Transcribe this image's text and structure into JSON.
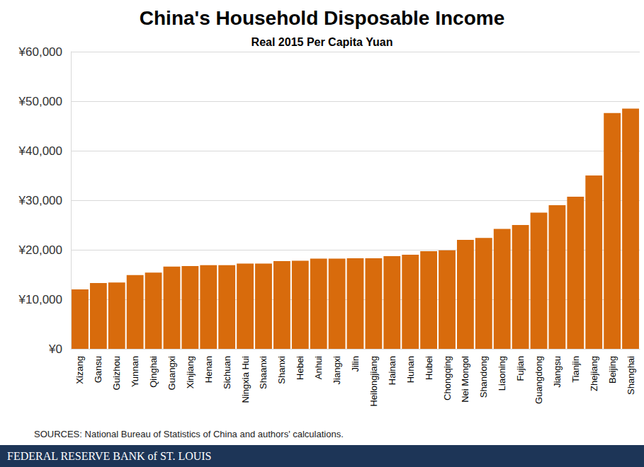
{
  "chart_data": {
    "type": "bar",
    "title": "China's Household Disposable Income",
    "subtitle": "Real 2015 Per Capita Yuan",
    "annotations": [
      "SOURCES: National Bureau of Statistics of China and authors' calculations.",
      "FEDERAL RESERVE BANK of ST. LOUIS"
    ],
    "categories": [
      "Xizang",
      "Gansu",
      "Guizhou",
      "Yunnan",
      "Qinghai",
      "Guangxi",
      "Xinjiang",
      "Henan",
      "Sichuan",
      "Ningxia Hui",
      "Shaanxi",
      "Shanxi",
      "Hebei",
      "Anhui",
      "Jiangxi",
      "Jilin",
      "Heilongjiang",
      "Hainan",
      "Hunan",
      "Hubei",
      "Chongqing",
      "Nei Mongol",
      "Shandong",
      "Liaoning",
      "Fujian",
      "Guangdong",
      "Jiangsu",
      "Tianjin",
      "Zhejiang",
      "Beijing",
      "Shanghai"
    ],
    "values": [
      12000,
      13300,
      13400,
      14900,
      15400,
      16600,
      16700,
      16900,
      16900,
      17200,
      17200,
      17700,
      17800,
      18200,
      18200,
      18300,
      18300,
      18700,
      19000,
      19700,
      19900,
      22000,
      22400,
      24200,
      25000,
      27500,
      29000,
      30700,
      35000,
      47600,
      48500
    ],
    "color": "#d86b0c",
    "ylim": [
      0,
      60000
    ],
    "yticks": [
      {
        "value": 0,
        "label": "¥0"
      },
      {
        "value": 10000,
        "label": "¥10,000"
      },
      {
        "value": 20000,
        "label": "¥20,000"
      },
      {
        "value": 30000,
        "label": "¥30,000"
      },
      {
        "value": 40000,
        "label": "¥40,000"
      },
      {
        "value": 50000,
        "label": "¥50,000"
      },
      {
        "value": 60000,
        "label": "¥60,000"
      }
    ],
    "grid": true
  }
}
